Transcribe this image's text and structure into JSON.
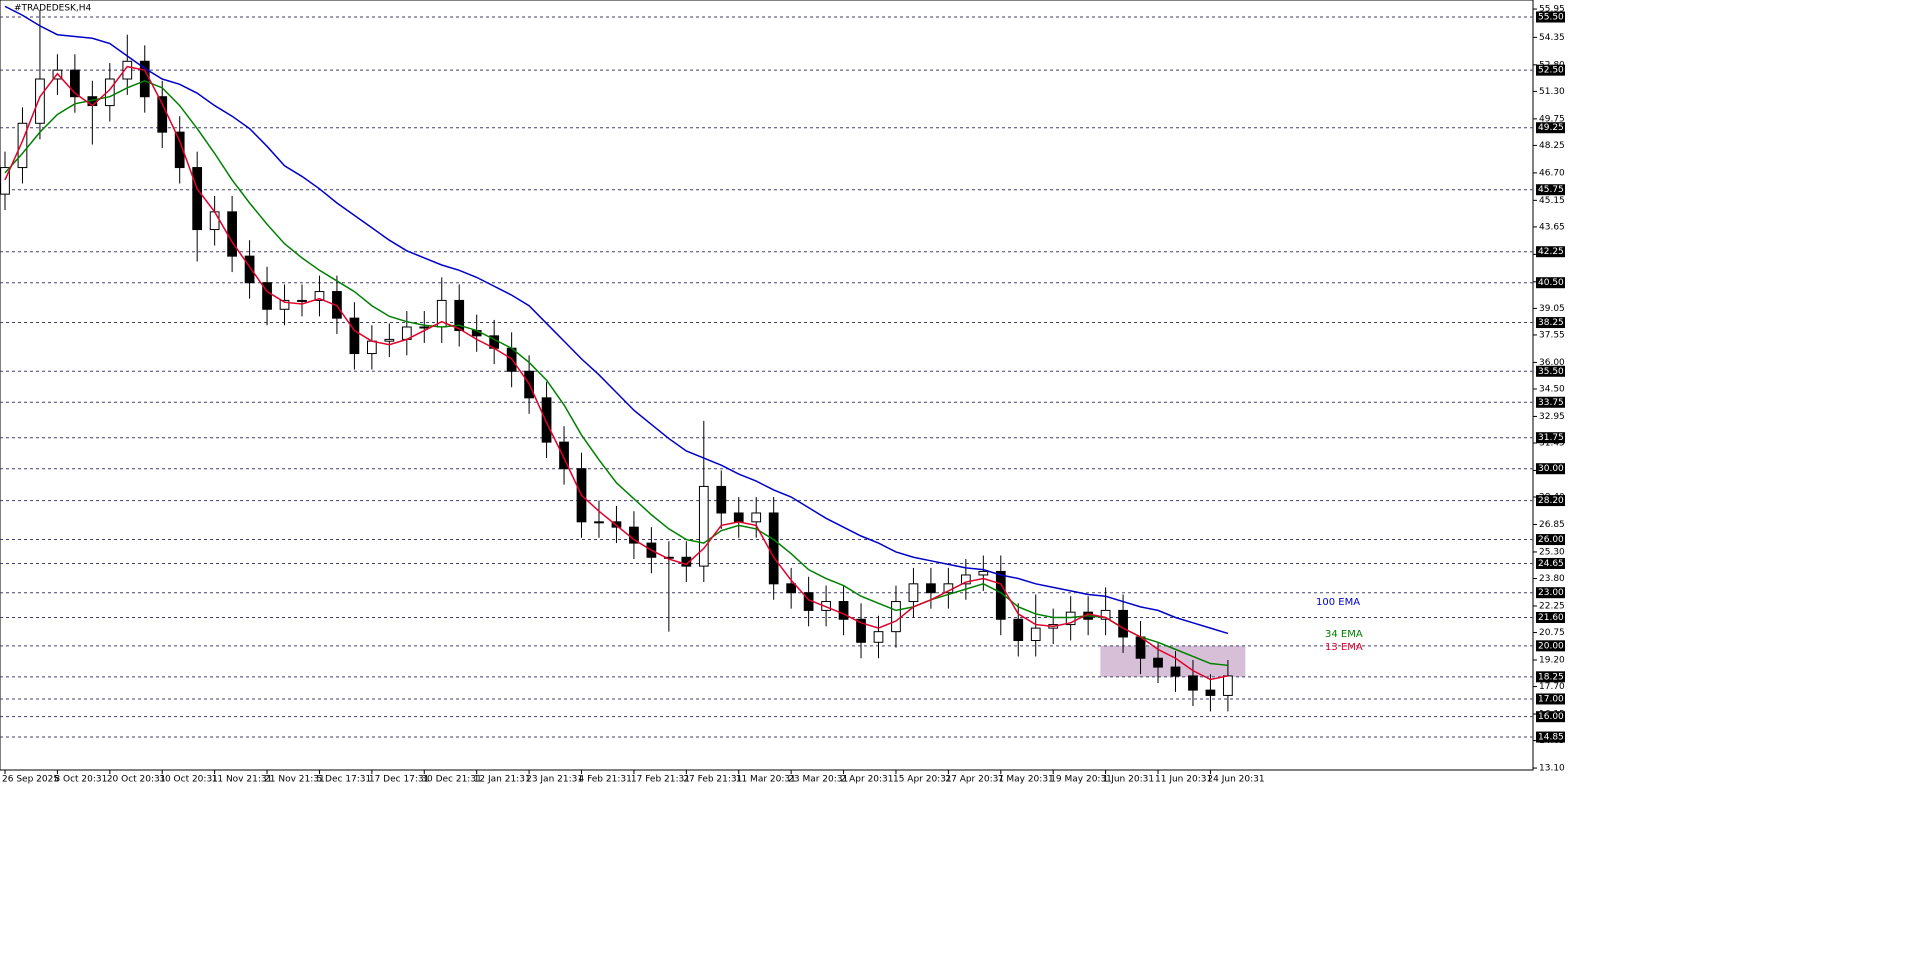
{
  "chart_data": {
    "type": "candlestick",
    "title": "#TRADEDESK,H4",
    "categories": [
      "26 Sep 2025",
      null,
      null,
      "8 Oct 20:31",
      null,
      null,
      "20 Oct 20:31",
      null,
      null,
      "30 Oct 20:31",
      null,
      null,
      "11 Nov 21:31",
      null,
      null,
      "21 Nov 21:31",
      null,
      null,
      "5 Dec 17:31",
      null,
      null,
      "17 Dec 17:31",
      null,
      null,
      "30 Dec 21:31",
      null,
      null,
      "12 Jan 21:31",
      null,
      null,
      "23 Jan 21:31",
      null,
      null,
      "4 Feb 21:31",
      null,
      null,
      "17 Feb 21:31",
      null,
      null,
      "27 Feb 21:31",
      null,
      null,
      "11 Mar 20:31",
      null,
      null,
      "23 Mar 20:31",
      null,
      null,
      "2 Apr 20:31",
      null,
      null,
      "15 Apr 20:31",
      null,
      null,
      "27 Apr 20:31",
      null,
      null,
      "7 May 20:31",
      null,
      null,
      "19 May 20:31",
      null,
      null,
      "1 Jun 20:31",
      null,
      null,
      "11 Jun 20:31",
      null,
      null,
      "24 Jun 20:31",
      null
    ],
    "open": [
      45.5,
      47,
      49.5,
      52,
      52.5,
      51,
      50.5,
      52,
      53,
      51,
      49,
      47,
      43.5,
      44.5,
      42,
      40.5,
      39,
      39.5,
      39.5,
      40,
      38.5,
      36.5,
      37.2,
      37.3,
      38,
      38,
      39.5,
      37.8,
      37.5,
      36.8,
      35.5,
      34,
      31.5,
      30,
      27,
      27,
      26.7,
      25.8,
      25,
      25,
      24.5,
      29,
      27.5,
      27,
      27.5,
      23.5,
      23,
      22,
      22.5,
      21.5,
      20.2,
      20.8,
      22.5,
      23.5,
      23,
      23.5,
      24,
      24.2,
      21.5,
      20.3,
      21,
      21.2,
      21.9,
      21.5,
      22,
      20.5,
      19.3,
      18.8,
      18.3,
      17.5,
      17.2
    ],
    "high": [
      47.9,
      50.4,
      55.9,
      53.4,
      53.4,
      51.9,
      52.9,
      54.5,
      53.9,
      51.9,
      49.9,
      47.9,
      45.4,
      45.4,
      42.9,
      41.4,
      40.4,
      40.4,
      40.9,
      40.9,
      39.4,
      38.1,
      38.2,
      38.9,
      38.9,
      40.8,
      40.4,
      38.7,
      38.4,
      37.7,
      36.4,
      34.9,
      32.4,
      30.9,
      28.2,
      27.9,
      27.6,
      26.7,
      25.9,
      25.9,
      32.7,
      29.9,
      28.4,
      28.4,
      28.4,
      24.4,
      23.9,
      23.4,
      23.4,
      22.4,
      21.7,
      23.4,
      24.4,
      24.4,
      24.4,
      24.9,
      25.1,
      25.1,
      22.4,
      22.9,
      22.1,
      22.8,
      22.8,
      23.3,
      22.9,
      21.4,
      20.2,
      19.7,
      19.2,
      18.4,
      19.2
    ],
    "low": [
      44.6,
      46.1,
      48.6,
      51.1,
      50.1,
      48.3,
      49.6,
      51.1,
      50.1,
      48.1,
      46.1,
      41.7,
      42.6,
      41.1,
      39.6,
      38.1,
      38.1,
      38.6,
      38.6,
      37.6,
      35.6,
      35.6,
      36.3,
      36.4,
      37.1,
      37.1,
      36.9,
      36.6,
      35.9,
      34.6,
      33.1,
      30.6,
      29.1,
      26.1,
      26.1,
      25.8,
      24.9,
      24.1,
      20.8,
      23.6,
      23.6,
      26.6,
      26.1,
      26.1,
      22.6,
      22.1,
      21.1,
      21.1,
      20.6,
      19.3,
      19.3,
      19.9,
      21.6,
      22.1,
      22.1,
      22.6,
      23.1,
      20.6,
      19.4,
      19.4,
      20.1,
      20.3,
      20.6,
      20.6,
      19.6,
      18.4,
      17.9,
      17.4,
      16.6,
      16.3,
      16.3
    ],
    "close": [
      47,
      49.5,
      52,
      52.5,
      51,
      50.5,
      52,
      53,
      51,
      49,
      47,
      43.5,
      44.5,
      42,
      40.5,
      39,
      39.5,
      39.5,
      40,
      38.5,
      36.5,
      37.2,
      37.3,
      38,
      38,
      39.5,
      37.8,
      37.5,
      36.8,
      35.5,
      34,
      31.5,
      30,
      27,
      27,
      26.7,
      25.8,
      25,
      25,
      24.5,
      29,
      27.5,
      27,
      27.5,
      23.5,
      23,
      22,
      22.5,
      21.5,
      20.2,
      20.8,
      22.5,
      23.5,
      23,
      23.5,
      24,
      24.2,
      21.5,
      20.3,
      21,
      21.2,
      21.9,
      21.5,
      22,
      20.5,
      19.3,
      18.8,
      18.3,
      17.5,
      17.2,
      18.3
    ],
    "series": [
      {
        "name": "100 EMA",
        "color": "#0000c8",
        "values": [
          56.1,
          55.6,
          55.0,
          54.5,
          54.4,
          54.3,
          54.0,
          53.3,
          52.6,
          52.0,
          51.7,
          51.2,
          50.5,
          49.9,
          49.2,
          48.2,
          47.1,
          46.5,
          45.8,
          45.0,
          44.3,
          43.6,
          42.9,
          42.3,
          41.9,
          41.5,
          41.2,
          40.8,
          40.3,
          39.8,
          39.2,
          38.2,
          37.2,
          36.2,
          35.3,
          34.3,
          33.3,
          32.5,
          31.7,
          31.0,
          30.6,
          30.2,
          29.7,
          29.3,
          28.8,
          28.4,
          27.8,
          27.2,
          26.7,
          26.2,
          25.8,
          25.3,
          25.0,
          24.8,
          24.6,
          24.4,
          24.3,
          24.0,
          23.8,
          23.5,
          23.3,
          23.1,
          22.9,
          22.8,
          22.5,
          22.2,
          22.0,
          21.6,
          21.3,
          21.0,
          20.7
        ]
      },
      {
        "name": "34 EMA",
        "color": "#008000",
        "values": [
          46.7,
          47.8,
          49.0,
          50.0,
          50.6,
          50.8,
          51.0,
          51.5,
          51.9,
          51.5,
          50.5,
          49.2,
          47.8,
          46.3,
          45.0,
          43.8,
          42.7,
          41.9,
          41.2,
          40.6,
          40.0,
          39.2,
          38.6,
          38.3,
          38.1,
          38.0,
          38.1,
          37.8,
          37.3,
          36.8,
          36.0,
          35.0,
          33.6,
          31.9,
          30.5,
          29.2,
          28.3,
          27.4,
          26.6,
          26.0,
          25.8,
          26.5,
          26.8,
          26.6,
          26.0,
          25.2,
          24.3,
          23.8,
          23.4,
          22.8,
          22.4,
          22.0,
          22.2,
          22.6,
          22.9,
          23.2,
          23.5,
          23.0,
          22.2,
          21.8,
          21.6,
          21.6,
          21.7,
          21.6,
          21.0,
          20.5,
          20.2,
          19.8,
          19.4,
          19.0,
          18.9
        ]
      },
      {
        "name": "13 EMA",
        "color": "#e0002a",
        "values": [
          46.3,
          48.5,
          51.0,
          52.3,
          51.2,
          50.5,
          51.4,
          52.7,
          52.5,
          50.6,
          48.5,
          45.8,
          44.5,
          42.8,
          41.4,
          40.0,
          39.4,
          39.3,
          39.6,
          39.2,
          37.8,
          37.2,
          37.0,
          37.3,
          37.8,
          38.3,
          37.9,
          37.3,
          36.8,
          36.2,
          34.8,
          32.6,
          30.6,
          28.5,
          27.6,
          26.8,
          26.0,
          25.4,
          24.9,
          24.6,
          25.5,
          26.8,
          27.0,
          26.8,
          25.0,
          23.7,
          22.6,
          22.2,
          21.8,
          21.3,
          21.0,
          21.4,
          22.2,
          22.6,
          23.1,
          23.6,
          23.8,
          23.5,
          21.8,
          21.2,
          21.1,
          21.3,
          21.8,
          21.6,
          21.0,
          20.5,
          19.8,
          19.3,
          18.6,
          18.1,
          18.3
        ]
      }
    ],
    "ylim": [
      12.99,
      56.46
    ],
    "yticks": [
      55.95,
      54.35,
      {
        "value": 52.8,
        "label": "52.80"
      },
      {
        "value": 51.3,
        "label": "51.30"
      },
      49.75,
      48.25,
      {
        "value": 46.7,
        "label": "46.70"
      },
      45.15,
      43.65,
      {
        "value": 42.1,
        "label": "42.10"
      },
      40.55,
      39.05,
      37.55,
      {
        "value": 36,
        "label": "36.00"
      },
      {
        "value": 34.5,
        "label": "34.50"
      },
      32.95,
      31.45,
      {
        "value": 29.9,
        "label": "29.90"
      },
      {
        "value": 28.4,
        "label": "28.40"
      },
      26.85,
      {
        "value": 25.3,
        "label": "25.30"
      },
      {
        "value": 23.8,
        "label": "23.80"
      },
      22.25,
      20.75,
      {
        "value": 19.2,
        "label": "19.20"
      },
      {
        "value": 17.7,
        "label": "17.70"
      },
      16.15,
      14.65,
      {
        "value": 13.1,
        "label": "13.10"
      }
    ],
    "levels": [
      {
        "value": 55.5,
        "label": "55.50"
      },
      {
        "value": 52.5,
        "label": "52.50"
      },
      49.25,
      45.75,
      42.25,
      {
        "value": 40.5,
        "label": "40.50"
      },
      38.25,
      {
        "value": 35.5,
        "label": "35.50"
      },
      33.75,
      31.75,
      {
        "value": 30,
        "label": "30.00"
      },
      {
        "value": 28.2,
        "label": "28.20"
      },
      {
        "value": 26,
        "label": "26.00"
      },
      24.65,
      {
        "value": 23,
        "label": "23.00"
      },
      {
        "value": 21.6,
        "label": "21.60"
      },
      {
        "value": 20,
        "label": "20.00"
      },
      18.25,
      {
        "value": 17,
        "label": "17.00"
      },
      {
        "value": 16,
        "label": "16.00"
      },
      14.85
    ],
    "zone": {
      "from": 62.7,
      "to": 71,
      "top": 20,
      "bottom": 18.25,
      "color": "#d8bfd8"
    }
  }
}
